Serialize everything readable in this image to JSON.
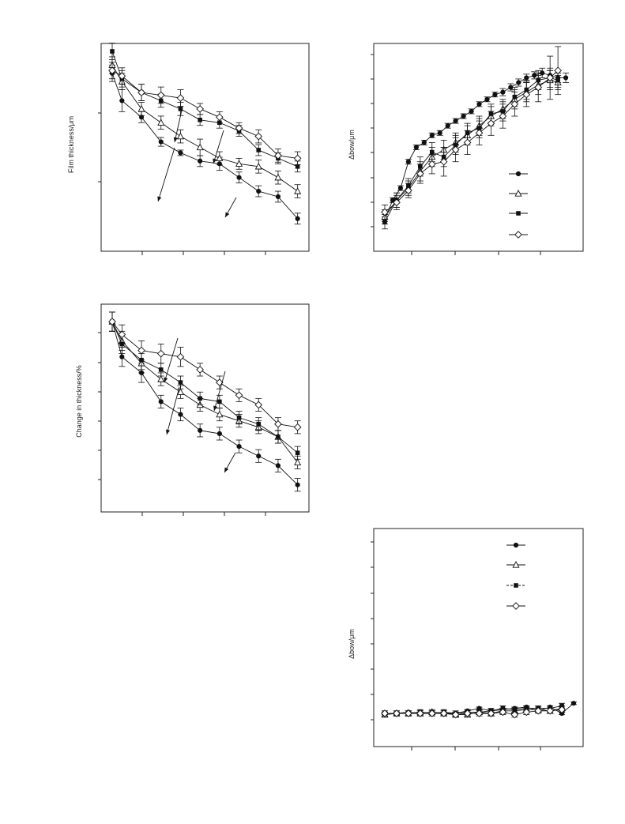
{
  "chart_data": [
    {
      "type": "line",
      "title": "",
      "xlabel": "",
      "ylabel": "Film thickness/μm",
      "xlim": [
        0,
        5
      ],
      "ylim": [
        0,
        3.5
      ],
      "grid": false,
      "series": [
        {
          "marker": "circle-filled",
          "x": [
            0,
            0.25,
            0.75,
            1.25,
            1.75,
            2.25,
            2.75,
            3.25,
            3.75,
            4.25,
            4.75
          ],
          "y": [
            3.1,
            2.6,
            2.3,
            1.85,
            1.65,
            1.5,
            1.45,
            1.2,
            0.95,
            0.85,
            0.45
          ],
          "err": [
            0.15,
            0.2,
            0.1,
            0.08,
            0.05,
            0.1,
            0.12,
            0.1,
            0.1,
            0.1,
            0.1
          ]
        },
        {
          "marker": "triangle-open",
          "x": [
            0,
            0.25,
            0.75,
            1.25,
            1.75,
            2.25,
            2.75,
            3.25,
            3.75,
            4.25,
            4.75
          ],
          "y": [
            3.25,
            2.95,
            2.45,
            2.2,
            1.95,
            1.75,
            1.55,
            1.45,
            1.4,
            1.2,
            0.95
          ],
          "err": [
            0.15,
            0.15,
            0.12,
            0.12,
            0.12,
            0.15,
            0.12,
            0.1,
            0.12,
            0.12,
            0.12
          ]
        },
        {
          "marker": "square-filled",
          "x": [
            0,
            0.25,
            0.75,
            1.25,
            1.75,
            2.25,
            2.75,
            3.25,
            3.75,
            4.25,
            4.75
          ],
          "y": [
            3.5,
            3.0,
            2.75,
            2.6,
            2.45,
            2.25,
            2.2,
            2.05,
            1.7,
            1.55,
            1.4
          ],
          "err": [
            0.15,
            0.15,
            0.15,
            0.12,
            0.12,
            0.1,
            0.1,
            0.1,
            0.1,
            0.1,
            0.1
          ]
        },
        {
          "marker": "diamond-open",
          "x": [
            0,
            0.25,
            0.75,
            1.25,
            1.75,
            2.25,
            2.75,
            3.25,
            3.75,
            4.25,
            4.75
          ],
          "y": [
            3.15,
            3.05,
            2.75,
            2.7,
            2.65,
            2.45,
            2.3,
            2.1,
            1.95,
            1.6,
            1.55
          ],
          "err": [
            0.15,
            0.15,
            0.15,
            0.15,
            0.15,
            0.1,
            0.1,
            0.1,
            0.12,
            0.12,
            0.12
          ]
        }
      ]
    },
    {
      "type": "line",
      "title": "",
      "xlabel": "",
      "ylabel": "Δbow/μm",
      "xlim": [
        0,
        5
      ],
      "ylim": [
        0,
        8
      ],
      "grid": false,
      "legend": "right",
      "series": [
        {
          "marker": "circle-filled",
          "x": [
            0,
            0.2,
            0.4,
            0.6,
            0.8,
            1.0,
            1.2,
            1.4,
            1.6,
            1.8,
            2.0,
            2.2,
            2.4,
            2.6,
            2.8,
            3.0,
            3.2,
            3.4,
            3.6,
            3.8,
            4.0,
            4.2,
            4.4,
            4.6
          ],
          "y": [
            1.0,
            1.8,
            2.3,
            3.4,
            4.0,
            4.2,
            4.5,
            4.6,
            4.9,
            5.1,
            5.3,
            5.5,
            5.8,
            6.0,
            6.2,
            6.3,
            6.5,
            6.7,
            6.9,
            7.0,
            7.1,
            7.0,
            6.9,
            6.9
          ],
          "err": [
            0.1,
            0.1,
            0.1,
            0.1,
            0.1,
            0.1,
            0.1,
            0.1,
            0.1,
            0.1,
            0.1,
            0.1,
            0.1,
            0.1,
            0.1,
            0.15,
            0.15,
            0.15,
            0.15,
            0.15,
            0.2,
            0.2,
            0.2,
            0.2
          ]
        },
        {
          "marker": "triangle-open",
          "x": [
            0,
            0.3,
            0.6,
            0.9,
            1.2,
            1.5,
            1.8,
            2.1,
            2.4,
            2.7,
            3.0,
            3.3,
            3.6,
            3.9,
            4.2,
            4.4
          ],
          "y": [
            1.1,
            1.8,
            2.3,
            3.0,
            3.6,
            3.9,
            4.2,
            4.5,
            4.9,
            5.3,
            5.6,
            6.0,
            6.3,
            6.6,
            6.8,
            6.7
          ],
          "err": [
            0.3,
            0.3,
            0.3,
            0.4,
            0.4,
            0.4,
            0.4,
            0.4,
            0.4,
            0.4,
            0.4,
            0.4,
            0.4,
            0.4,
            0.4,
            0.3
          ]
        },
        {
          "marker": "square-filled",
          "x": [
            0,
            0.3,
            0.6,
            0.9,
            1.2,
            1.5,
            1.8,
            2.1,
            2.4,
            2.7,
            3.0,
            3.3,
            3.6,
            3.9,
            4.2,
            4.4
          ],
          "y": [
            0.9,
            1.8,
            2.4,
            3.2,
            3.8,
            3.6,
            4.1,
            4.6,
            4.8,
            5.4,
            5.5,
            6.1,
            6.4,
            6.8,
            6.9,
            6.8
          ],
          "err": [
            0.3,
            0.3,
            0.3,
            0.4,
            0.4,
            0.4,
            0.4,
            0.4,
            0.4,
            0.4,
            0.4,
            0.4,
            0.4,
            0.4,
            0.4,
            0.3
          ]
        },
        {
          "marker": "diamond-open",
          "x": [
            0,
            0.3,
            0.6,
            0.9,
            1.2,
            1.5,
            1.8,
            2.1,
            2.4,
            2.7,
            3.0,
            3.3,
            3.6,
            3.9,
            4.2,
            4.4
          ],
          "y": [
            1.3,
            1.7,
            2.2,
            2.9,
            3.3,
            3.4,
            3.9,
            4.2,
            4.6,
            5.0,
            5.3,
            5.8,
            6.2,
            6.5,
            6.9,
            7.2
          ],
          "err": [
            0.3,
            0.3,
            0.3,
            0.4,
            0.4,
            0.6,
            0.5,
            0.5,
            0.5,
            0.5,
            0.5,
            0.5,
            0.5,
            0.6,
            0.9,
            1.0
          ]
        }
      ]
    },
    {
      "type": "line",
      "title": "",
      "xlabel": "",
      "ylabel": "Change in thickness/%",
      "xlim": [
        0,
        5
      ],
      "ylim": [
        0,
        6
      ],
      "grid": false,
      "series": [
        {
          "marker": "circle-filled",
          "x": [
            0,
            0.25,
            0.75,
            1.25,
            1.75,
            2.25,
            2.75,
            3.25,
            3.75,
            4.25,
            4.75
          ],
          "y": [
            5.7,
            4.6,
            4.1,
            3.2,
            2.8,
            2.3,
            2.2,
            1.8,
            1.5,
            1.2,
            0.6
          ],
          "err": [
            0.3,
            0.3,
            0.3,
            0.2,
            0.2,
            0.2,
            0.2,
            0.2,
            0.2,
            0.2,
            0.2
          ]
        },
        {
          "marker": "triangle-open",
          "x": [
            0,
            0.25,
            0.75,
            1.25,
            1.75,
            2.25,
            2.75,
            3.25,
            3.75,
            4.25,
            4.75
          ],
          "y": [
            5.7,
            5.1,
            4.4,
            3.9,
            3.5,
            3.1,
            2.8,
            2.6,
            2.4,
            2.1,
            1.3
          ],
          "err": [
            0.3,
            0.3,
            0.3,
            0.2,
            0.2,
            0.2,
            0.2,
            0.2,
            0.2,
            0.2,
            0.2
          ]
        },
        {
          "marker": "square-filled",
          "x": [
            0,
            0.25,
            0.75,
            1.25,
            1.75,
            2.25,
            2.75,
            3.25,
            3.75,
            4.25,
            4.75
          ],
          "y": [
            5.7,
            5.0,
            4.5,
            4.2,
            3.8,
            3.3,
            3.2,
            2.7,
            2.5,
            2.1,
            1.6
          ],
          "err": [
            0.3,
            0.3,
            0.3,
            0.2,
            0.2,
            0.2,
            0.2,
            0.2,
            0.2,
            0.2,
            0.2
          ]
        },
        {
          "marker": "diamond-open",
          "x": [
            0,
            0.25,
            0.75,
            1.25,
            1.75,
            2.25,
            2.75,
            3.25,
            3.75,
            4.25,
            4.75
          ],
          "y": [
            5.7,
            5.3,
            4.8,
            4.7,
            4.6,
            4.2,
            3.8,
            3.4,
            3.1,
            2.5,
            2.4
          ],
          "err": [
            0.3,
            0.3,
            0.3,
            0.3,
            0.3,
            0.2,
            0.2,
            0.2,
            0.2,
            0.2,
            0.2
          ]
        }
      ]
    },
    {
      "type": "line",
      "title": "",
      "xlabel": "",
      "ylabel": "Δbow/μm",
      "xlim": [
        0,
        5
      ],
      "ylim": [
        -1,
        7
      ],
      "grid": false,
      "legend": "top-right",
      "series": [
        {
          "marker": "circle-filled",
          "x": [
            0,
            0.3,
            0.6,
            0.9,
            1.2,
            1.5,
            1.8,
            2.1,
            2.4,
            2.7,
            3.0,
            3.3,
            3.6,
            3.9,
            4.2,
            4.5,
            4.8
          ],
          "y": [
            0.0,
            0.0,
            0.05,
            0.0,
            0.05,
            0.0,
            0.0,
            0.1,
            0.2,
            0.1,
            0.15,
            0.2,
            0.25,
            0.1,
            0.25,
            0.0,
            0.4
          ],
          "err": [
            0.05,
            0.05,
            0.05,
            0.05,
            0.05,
            0.05,
            0.05,
            0.05,
            0.05,
            0.05,
            0.05,
            0.05,
            0.05,
            0.05,
            0.05,
            0.05,
            0.05
          ]
        },
        {
          "marker": "triangle-open",
          "x": [
            0,
            0.3,
            0.6,
            0.9,
            1.2,
            1.5,
            1.8,
            2.1,
            2.4,
            2.7,
            3.0,
            3.3,
            3.6,
            3.9,
            4.2,
            4.5
          ],
          "y": [
            -0.05,
            0.0,
            0.0,
            0.0,
            0.05,
            0.0,
            -0.05,
            -0.05,
            0.05,
            0.0,
            0.1,
            0.1,
            0.15,
            0.15,
            0.1,
            0.2
          ],
          "err": [
            0.1,
            0.1,
            0.1,
            0.1,
            0.1,
            0.1,
            0.1,
            0.1,
            0.1,
            0.1,
            0.1,
            0.1,
            0.1,
            0.1,
            0.1,
            0.1
          ]
        },
        {
          "marker": "square-filled",
          "x": [
            0,
            0.3,
            0.6,
            0.9,
            1.2,
            1.5,
            1.8,
            2.1,
            2.4,
            2.7,
            3.0,
            3.3,
            3.6,
            3.9,
            4.2,
            4.5
          ],
          "y": [
            0.0,
            0.0,
            0.0,
            0.05,
            0.0,
            0.05,
            0.0,
            0.05,
            0.05,
            0.1,
            0.2,
            0.15,
            0.2,
            0.2,
            0.2,
            0.3
          ],
          "err": [
            0.1,
            0.1,
            0.1,
            0.1,
            0.1,
            0.1,
            0.1,
            0.1,
            0.1,
            0.1,
            0.1,
            0.1,
            0.1,
            0.1,
            0.1,
            0.1
          ]
        },
        {
          "marker": "diamond-open",
          "x": [
            0,
            0.3,
            0.6,
            0.9,
            1.2,
            1.5,
            1.8,
            2.1,
            2.4,
            2.7,
            3.0,
            3.3,
            3.6,
            3.9,
            4.2,
            4.5
          ],
          "y": [
            0.0,
            0.0,
            0.0,
            0.0,
            0.0,
            0.0,
            -0.05,
            0.0,
            0.0,
            0.0,
            0.05,
            -0.05,
            0.05,
            0.1,
            0.1,
            0.15
          ],
          "err": [
            0.1,
            0.1,
            0.1,
            0.1,
            0.1,
            0.1,
            0.1,
            0.1,
            0.1,
            0.1,
            0.1,
            0.1,
            0.1,
            0.1,
            0.1,
            0.1
          ]
        }
      ]
    }
  ]
}
